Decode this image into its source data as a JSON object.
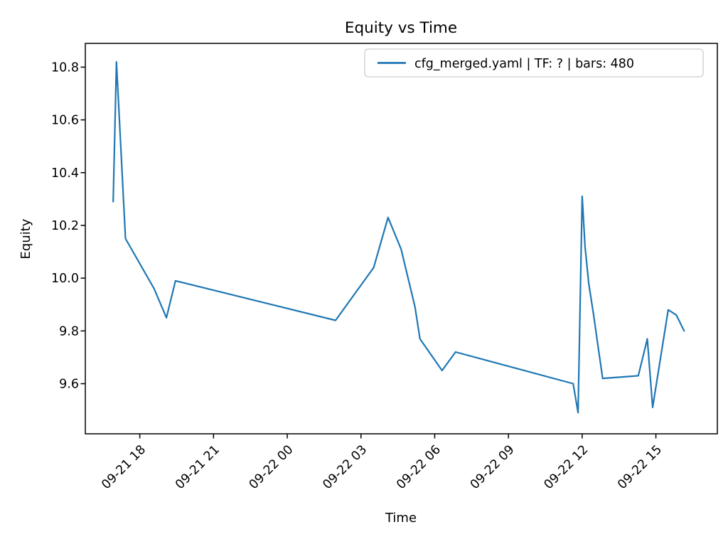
{
  "chart_data": {
    "type": "line",
    "title": "Equity vs Time",
    "xlabel": "Time",
    "ylabel": "Equity",
    "grid": false,
    "legend": {
      "position": "upper right",
      "entries": [
        {
          "label": "cfg_merged.yaml | TF: ? | bars: 480",
          "color": "#1f77b4"
        }
      ]
    },
    "x_ticks": [
      "09-21 18",
      "09-21 21",
      "09-22 00",
      "09-22 03",
      "09-22 06",
      "09-22 09",
      "09-22 12",
      "09-22 15"
    ],
    "y_ticks": [
      "9.6",
      "9.8",
      "10.0",
      "10.2",
      "10.4",
      "10.6",
      "10.8"
    ],
    "xlim": [
      "09-21 15:47",
      "09-22 17:30"
    ],
    "ylim": [
      9.41,
      10.89
    ],
    "series": [
      {
        "name": "cfg_merged.yaml | TF: ? | bars: 480",
        "color": "#1f77b4",
        "points": [
          [
            "09-21 16:55",
            10.29
          ],
          [
            "09-21 17:03",
            10.82
          ],
          [
            "09-21 17:25",
            10.15
          ],
          [
            "09-21 18:35",
            9.96
          ],
          [
            "09-21 19:05",
            9.85
          ],
          [
            "09-21 19:27",
            9.99
          ],
          [
            "09-22 01:58",
            9.84
          ],
          [
            "09-22 03:31",
            10.04
          ],
          [
            "09-22 04:06",
            10.23
          ],
          [
            "09-22 04:38",
            10.11
          ],
          [
            "09-22 05:12",
            9.89
          ],
          [
            "09-22 05:24",
            9.77
          ],
          [
            "09-22 06:18",
            9.65
          ],
          [
            "09-22 06:51",
            9.72
          ],
          [
            "09-22 11:38",
            9.6
          ],
          [
            "09-22 11:50",
            9.49
          ],
          [
            "09-22 12:00",
            10.31
          ],
          [
            "09-22 12:07",
            10.12
          ],
          [
            "09-22 12:16",
            9.98
          ],
          [
            "09-22 12:28",
            9.86
          ],
          [
            "09-22 12:39",
            9.74
          ],
          [
            "09-22 12:50",
            9.62
          ],
          [
            "09-22 14:17",
            9.63
          ],
          [
            "09-22 14:39",
            9.77
          ],
          [
            "09-22 14:52",
            9.51
          ],
          [
            "09-22 15:30",
            9.88
          ],
          [
            "09-22 15:50",
            9.86
          ],
          [
            "09-22 16:09",
            9.8
          ]
        ]
      }
    ]
  }
}
